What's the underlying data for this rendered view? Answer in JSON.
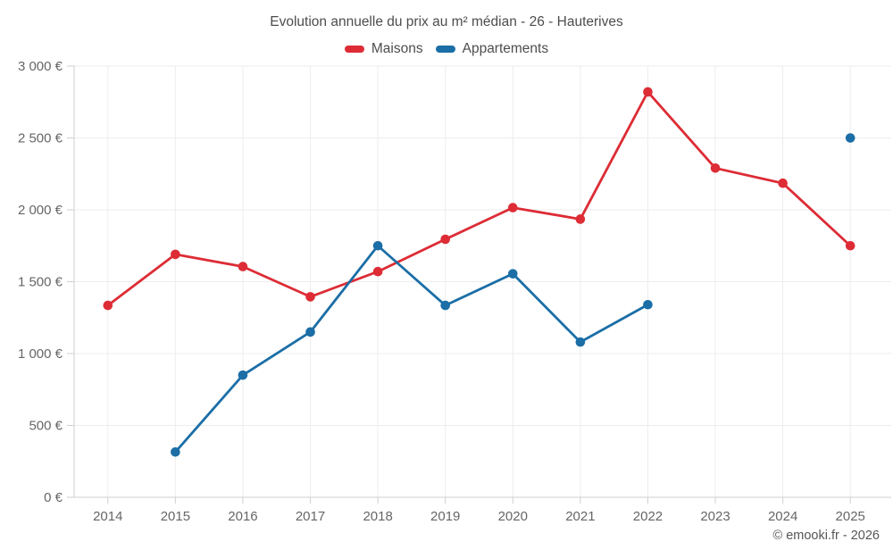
{
  "chart": {
    "title": "Evolution annuelle du prix au m² médian - 26 - Hauterives",
    "legend": [
      {
        "label": "Maisons",
        "color": "#dd2c35"
      },
      {
        "label": "Appartements",
        "color": "#1b6ea6"
      }
    ]
  },
  "footer": {
    "copyright": "© emooki.fr - 2026"
  },
  "chart_data": {
    "type": "line",
    "title": "Evolution annuelle du prix au m² médian - 26 - Hauterives",
    "categories": [
      "2014",
      "2015",
      "2016",
      "2017",
      "2018",
      "2019",
      "2020",
      "2021",
      "2022",
      "2023",
      "2024",
      "2025"
    ],
    "series": [
      {
        "name": "Maisons",
        "color": "#dd2c35",
        "values": [
          1335,
          1690,
          1605,
          1395,
          1570,
          1795,
          2015,
          1935,
          2820,
          2290,
          2185,
          1750
        ]
      },
      {
        "name": "Appartements",
        "color": "#1b6ea6",
        "values": [
          null,
          315,
          850,
          1150,
          1750,
          1335,
          1555,
          1080,
          1340,
          null,
          null,
          2500
        ]
      }
    ],
    "xlabel": "",
    "ylabel": "",
    "ylim": [
      0,
      3000
    ],
    "ytick_step": 500,
    "ytick_labels": [
      "0 €",
      "500 €",
      "1 000 €",
      "1 500 €",
      "2 000 €",
      "2 500 €",
      "3 000 €"
    ],
    "grid": true,
    "legend_position": "top"
  }
}
